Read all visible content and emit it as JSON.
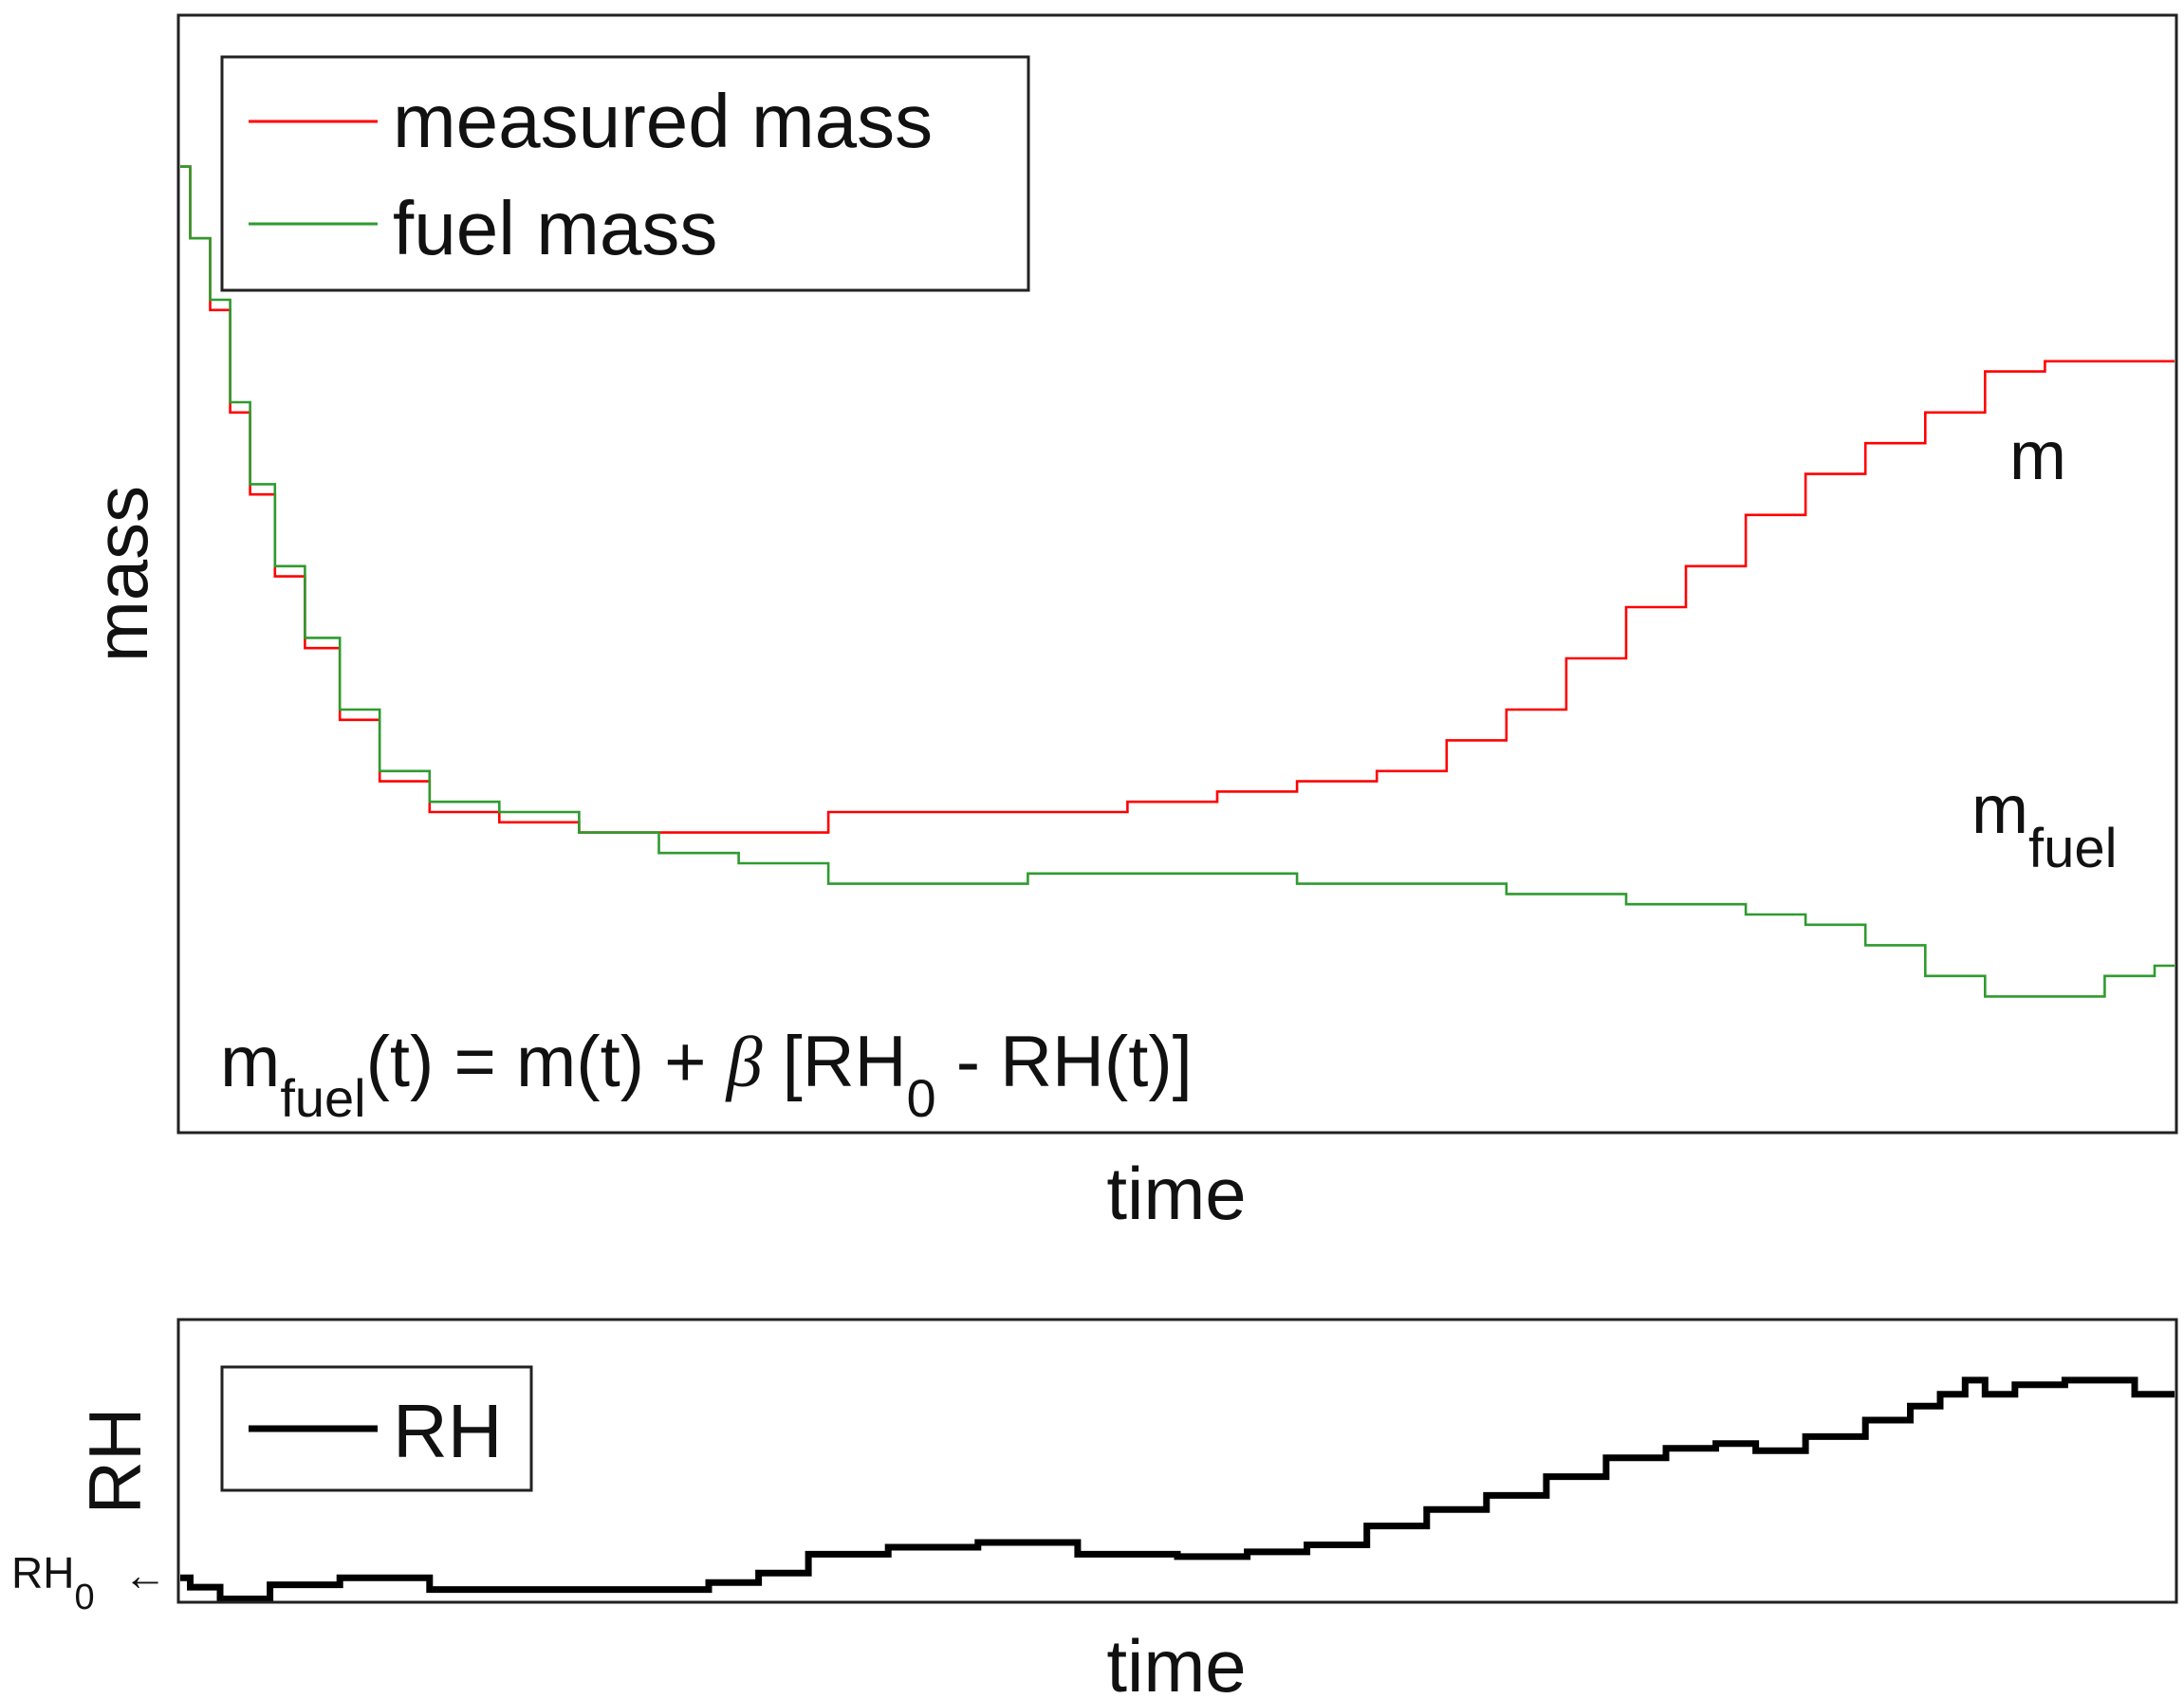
{
  "chart_data": [
    {
      "type": "line",
      "panel": "top",
      "xlabel": "time",
      "ylabel": "mass",
      "x_range": [
        0,
        1
      ],
      "y_range": [
        0,
        1
      ],
      "axis_ticks": "none",
      "legend_position": "top-left",
      "series": [
        {
          "name": "measured mass",
          "color": "#ff0000",
          "points": [
            [
              0.0,
              0.93
            ],
            [
              0.01,
              0.86
            ],
            [
              0.02,
              0.79
            ],
            [
              0.03,
              0.69
            ],
            [
              0.04,
              0.61
            ],
            [
              0.055,
              0.53
            ],
            [
              0.07,
              0.46
            ],
            [
              0.09,
              0.39
            ],
            [
              0.11,
              0.33
            ],
            [
              0.14,
              0.3
            ],
            [
              0.18,
              0.29
            ],
            [
              0.22,
              0.28
            ],
            [
              0.26,
              0.28
            ],
            [
              0.3,
              0.28
            ],
            [
              0.35,
              0.3
            ],
            [
              0.4,
              0.3
            ],
            [
              0.45,
              0.3
            ],
            [
              0.5,
              0.31
            ],
            [
              0.54,
              0.32
            ],
            [
              0.58,
              0.33
            ],
            [
              0.62,
              0.34
            ],
            [
              0.65,
              0.37
            ],
            [
              0.68,
              0.4
            ],
            [
              0.71,
              0.45
            ],
            [
              0.74,
              0.5
            ],
            [
              0.77,
              0.54
            ],
            [
              0.8,
              0.59
            ],
            [
              0.83,
              0.63
            ],
            [
              0.86,
              0.66
            ],
            [
              0.89,
              0.69
            ],
            [
              0.92,
              0.73
            ],
            [
              0.95,
              0.74
            ],
            [
              0.98,
              0.74
            ],
            [
              1.0,
              0.74
            ]
          ]
        },
        {
          "name": "fuel mass",
          "color": "#2e9b2e",
          "points": [
            [
              0.0,
              0.93
            ],
            [
              0.01,
              0.86
            ],
            [
              0.02,
              0.8
            ],
            [
              0.03,
              0.7
            ],
            [
              0.04,
              0.62
            ],
            [
              0.055,
              0.54
            ],
            [
              0.07,
              0.47
            ],
            [
              0.09,
              0.4
            ],
            [
              0.11,
              0.34
            ],
            [
              0.14,
              0.31
            ],
            [
              0.18,
              0.3
            ],
            [
              0.22,
              0.28
            ],
            [
              0.26,
              0.26
            ],
            [
              0.3,
              0.25
            ],
            [
              0.35,
              0.23
            ],
            [
              0.4,
              0.23
            ],
            [
              0.45,
              0.24
            ],
            [
              0.5,
              0.24
            ],
            [
              0.54,
              0.24
            ],
            [
              0.58,
              0.23
            ],
            [
              0.62,
              0.23
            ],
            [
              0.65,
              0.23
            ],
            [
              0.68,
              0.22
            ],
            [
              0.71,
              0.22
            ],
            [
              0.74,
              0.21
            ],
            [
              0.77,
              0.21
            ],
            [
              0.8,
              0.2
            ],
            [
              0.83,
              0.19
            ],
            [
              0.86,
              0.17
            ],
            [
              0.89,
              0.14
            ],
            [
              0.92,
              0.12
            ],
            [
              0.95,
              0.12
            ],
            [
              0.98,
              0.14
            ],
            [
              1.0,
              0.15
            ]
          ]
        }
      ],
      "annotations": [
        {
          "id": "m",
          "text": "m"
        },
        {
          "id": "mfuel",
          "base": "m",
          "sub": "fuel"
        },
        {
          "id": "equation",
          "parts": [
            "m",
            "fuel",
            "(t) = m(t) + ",
            "β",
            " [RH",
            "0",
            " - RH(t)]"
          ]
        }
      ]
    },
    {
      "type": "line",
      "panel": "bottom",
      "xlabel": "time",
      "ylabel": "RH",
      "x_range": [
        0,
        1
      ],
      "y_range": [
        0,
        1
      ],
      "axis_ticks": "none",
      "legend_position": "top-left",
      "series": [
        {
          "name": "RH",
          "color": "#000000",
          "points": [
            [
              0.0,
              0.1
            ],
            [
              0.01,
              0.06
            ],
            [
              0.03,
              0.01
            ],
            [
              0.06,
              0.07
            ],
            [
              0.1,
              0.1
            ],
            [
              0.15,
              0.05
            ],
            [
              0.2,
              0.05
            ],
            [
              0.25,
              0.05
            ],
            [
              0.28,
              0.08
            ],
            [
              0.3,
              0.12
            ],
            [
              0.33,
              0.2
            ],
            [
              0.38,
              0.23
            ],
            [
              0.42,
              0.25
            ],
            [
              0.48,
              0.2
            ],
            [
              0.52,
              0.19
            ],
            [
              0.55,
              0.21
            ],
            [
              0.58,
              0.24
            ],
            [
              0.61,
              0.32
            ],
            [
              0.64,
              0.39
            ],
            [
              0.67,
              0.45
            ],
            [
              0.7,
              0.53
            ],
            [
              0.73,
              0.61
            ],
            [
              0.76,
              0.65
            ],
            [
              0.78,
              0.67
            ],
            [
              0.8,
              0.64
            ],
            [
              0.83,
              0.7
            ],
            [
              0.86,
              0.77
            ],
            [
              0.875,
              0.83
            ],
            [
              0.89,
              0.88
            ],
            [
              0.9,
              0.94
            ],
            [
              0.91,
              0.88
            ],
            [
              0.93,
              0.92
            ],
            [
              0.96,
              0.94
            ],
            [
              1.0,
              0.88
            ]
          ]
        }
      ],
      "annotations": [
        {
          "id": "rh0",
          "base": "RH",
          "sub": "0",
          "arrow": "←"
        }
      ]
    }
  ]
}
